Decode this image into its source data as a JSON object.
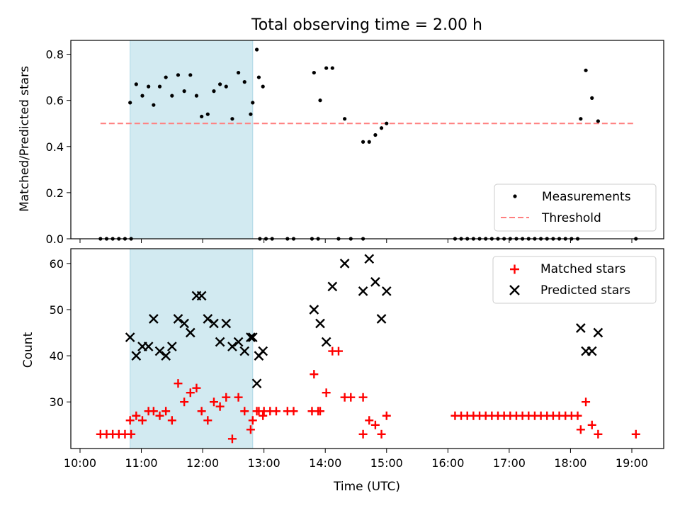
{
  "title": "Total observing time = 2.00 h",
  "colors": {
    "measurement": "#000000",
    "threshold": "#ff7f7f",
    "matched": "#ff0000",
    "predicted": "#000000",
    "highlight": "#add8e6"
  },
  "chart_data": [
    {
      "type": "scatter",
      "ylabel": "Matched/Predicted stars",
      "ylim": [
        0,
        0.86
      ],
      "yticks": [
        "0.0",
        "0.2",
        "0.4",
        "0.6",
        "0.8"
      ],
      "xlim_hours": [
        9.85,
        19.52
      ],
      "highlight_span": [
        "10:49",
        "12:49"
      ],
      "threshold": {
        "value": 0.5,
        "x_range": [
          "10:20",
          "19:02"
        ]
      },
      "legend": {
        "position": "lower right",
        "entries": [
          "Measurements",
          "Threshold"
        ]
      },
      "series": [
        {
          "name": "Measurements",
          "points": [
            [
              "10:20",
              0
            ],
            [
              "10:26",
              0
            ],
            [
              "10:32",
              0
            ],
            [
              "10:38",
              0
            ],
            [
              "10:44",
              0
            ],
            [
              "10:50",
              0
            ],
            [
              "10:49",
              0.59
            ],
            [
              "10:55",
              0.67
            ],
            [
              "11:01",
              0.62
            ],
            [
              "11:07",
              0.66
            ],
            [
              "11:12",
              0.58
            ],
            [
              "11:18",
              0.66
            ],
            [
              "11:24",
              0.7
            ],
            [
              "11:30",
              0.62
            ],
            [
              "11:36",
              0.71
            ],
            [
              "11:42",
              0.64
            ],
            [
              "11:48",
              0.71
            ],
            [
              "11:54",
              0.62
            ],
            [
              "11:59",
              0.53
            ],
            [
              "12:05",
              0.54
            ],
            [
              "12:11",
              0.64
            ],
            [
              "12:17",
              0.67
            ],
            [
              "12:23",
              0.66
            ],
            [
              "12:29",
              0.52
            ],
            [
              "12:35",
              0.72
            ],
            [
              "12:41",
              0.68
            ],
            [
              "12:47",
              0.54
            ],
            [
              "12:53",
              0.82
            ],
            [
              "12:59",
              0.66
            ],
            [
              "12:49",
              0.59
            ],
            [
              "12:55",
              0.7
            ],
            [
              "12:56",
              0
            ],
            [
              "13:02",
              0
            ],
            [
              "13:08",
              0
            ],
            [
              "13:23",
              0
            ],
            [
              "13:29",
              0
            ],
            [
              "13:47",
              0
            ],
            [
              "13:53",
              0
            ],
            [
              "13:49",
              0.72
            ],
            [
              "13:55",
              0.6
            ],
            [
              "14:01",
              0.74
            ],
            [
              "14:07",
              0.74
            ],
            [
              "14:13",
              0
            ],
            [
              "14:19",
              0.52
            ],
            [
              "14:25",
              0
            ],
            [
              "14:37",
              0
            ],
            [
              "14:37",
              0.42
            ],
            [
              "14:43",
              0.42
            ],
            [
              "14:49",
              0.45
            ],
            [
              "14:55",
              0.48
            ],
            [
              "15:00",
              0.5
            ],
            [
              "16:07",
              0
            ],
            [
              "16:13",
              0
            ],
            [
              "16:19",
              0
            ],
            [
              "16:25",
              0
            ],
            [
              "16:31",
              0
            ],
            [
              "16:37",
              0
            ],
            [
              "16:43",
              0
            ],
            [
              "16:49",
              0
            ],
            [
              "16:55",
              0
            ],
            [
              "17:01",
              0
            ],
            [
              "17:07",
              0
            ],
            [
              "17:13",
              0
            ],
            [
              "17:19",
              0
            ],
            [
              "17:25",
              0
            ],
            [
              "17:31",
              0
            ],
            [
              "17:37",
              0
            ],
            [
              "17:43",
              0
            ],
            [
              "17:49",
              0
            ],
            [
              "17:55",
              0
            ],
            [
              "18:01",
              0
            ],
            [
              "18:07",
              0
            ],
            [
              "18:10",
              0.52
            ],
            [
              "18:15",
              0.73
            ],
            [
              "18:21",
              0.61
            ],
            [
              "18:27",
              0.51
            ],
            [
              "19:04",
              0
            ]
          ]
        }
      ]
    },
    {
      "type": "scatter",
      "xlabel": "Time (UTC)",
      "ylabel": "Count",
      "ylim": [
        19.9,
        63.2
      ],
      "yticks": [
        "30",
        "40",
        "50",
        "60"
      ],
      "xticks": [
        "10:00",
        "11:00",
        "12:00",
        "13:00",
        "14:00",
        "15:00",
        "16:00",
        "17:00",
        "18:00",
        "19:00"
      ],
      "legend": {
        "position": "upper right",
        "entries": [
          "Matched stars",
          "Predicted stars"
        ]
      },
      "series": [
        {
          "name": "Matched stars",
          "points": [
            [
              "10:20",
              23
            ],
            [
              "10:26",
              23
            ],
            [
              "10:32",
              23
            ],
            [
              "10:38",
              23
            ],
            [
              "10:44",
              23
            ],
            [
              "10:50",
              23
            ],
            [
              "10:49",
              26
            ],
            [
              "10:55",
              27
            ],
            [
              "11:01",
              26
            ],
            [
              "11:07",
              28
            ],
            [
              "11:12",
              28
            ],
            [
              "11:18",
              27
            ],
            [
              "11:24",
              28
            ],
            [
              "11:30",
              26
            ],
            [
              "11:36",
              34
            ],
            [
              "11:42",
              30
            ],
            [
              "11:48",
              32
            ],
            [
              "11:54",
              33
            ],
            [
              "11:59",
              28
            ],
            [
              "12:05",
              26
            ],
            [
              "12:11",
              30
            ],
            [
              "12:17",
              29
            ],
            [
              "12:23",
              31
            ],
            [
              "12:29",
              22
            ],
            [
              "12:35",
              31
            ],
            [
              "12:41",
              28
            ],
            [
              "12:47",
              24
            ],
            [
              "12:53",
              28
            ],
            [
              "12:59",
              27
            ],
            [
              "12:49",
              26
            ],
            [
              "12:55",
              28
            ],
            [
              "13:00",
              28
            ],
            [
              "13:06",
              28
            ],
            [
              "13:12",
              28
            ],
            [
              "13:23",
              28
            ],
            [
              "13:29",
              28
            ],
            [
              "13:47",
              28
            ],
            [
              "13:53",
              28
            ],
            [
              "13:49",
              36
            ],
            [
              "13:55",
              28
            ],
            [
              "14:01",
              32
            ],
            [
              "14:07",
              41
            ],
            [
              "14:13",
              41
            ],
            [
              "14:19",
              31
            ],
            [
              "14:25",
              31
            ],
            [
              "14:37",
              31
            ],
            [
              "14:37",
              23
            ],
            [
              "14:43",
              26
            ],
            [
              "14:49",
              25
            ],
            [
              "14:55",
              23
            ],
            [
              "15:00",
              27
            ],
            [
              "16:07",
              27
            ],
            [
              "16:13",
              27
            ],
            [
              "16:19",
              27
            ],
            [
              "16:25",
              27
            ],
            [
              "16:31",
              27
            ],
            [
              "16:37",
              27
            ],
            [
              "16:43",
              27
            ],
            [
              "16:49",
              27
            ],
            [
              "16:55",
              27
            ],
            [
              "17:01",
              27
            ],
            [
              "17:07",
              27
            ],
            [
              "17:13",
              27
            ],
            [
              "17:19",
              27
            ],
            [
              "17:25",
              27
            ],
            [
              "17:31",
              27
            ],
            [
              "17:37",
              27
            ],
            [
              "17:43",
              27
            ],
            [
              "17:49",
              27
            ],
            [
              "17:55",
              27
            ],
            [
              "18:01",
              27
            ],
            [
              "18:07",
              27
            ],
            [
              "18:10",
              24
            ],
            [
              "18:15",
              30
            ],
            [
              "18:21",
              25
            ],
            [
              "18:27",
              23
            ],
            [
              "19:04",
              23
            ]
          ]
        },
        {
          "name": "Predicted stars",
          "points": [
            [
              "10:49",
              44
            ],
            [
              "10:55",
              40
            ],
            [
              "11:01",
              42
            ],
            [
              "11:07",
              42
            ],
            [
              "11:12",
              48
            ],
            [
              "11:18",
              41
            ],
            [
              "11:24",
              40
            ],
            [
              "11:30",
              42
            ],
            [
              "11:36",
              48
            ],
            [
              "11:42",
              47
            ],
            [
              "11:48",
              45
            ],
            [
              "11:54",
              53
            ],
            [
              "11:59",
              53
            ],
            [
              "12:05",
              48
            ],
            [
              "12:11",
              47
            ],
            [
              "12:17",
              43
            ],
            [
              "12:23",
              47
            ],
            [
              "12:29",
              42
            ],
            [
              "12:35",
              43
            ],
            [
              "12:41",
              41
            ],
            [
              "12:47",
              44
            ],
            [
              "12:53",
              34
            ],
            [
              "12:59",
              41
            ],
            [
              "12:49",
              44
            ],
            [
              "12:55",
              40
            ],
            [
              "13:49",
              50
            ],
            [
              "13:55",
              47
            ],
            [
              "14:01",
              43
            ],
            [
              "14:07",
              55
            ],
            [
              "14:19",
              60
            ],
            [
              "14:37",
              54
            ],
            [
              "14:43",
              61
            ],
            [
              "14:49",
              56
            ],
            [
              "14:55",
              48
            ],
            [
              "15:00",
              54
            ],
            [
              "18:10",
              46
            ],
            [
              "18:15",
              41
            ],
            [
              "18:21",
              41
            ],
            [
              "18:27",
              45
            ]
          ]
        }
      ]
    }
  ]
}
